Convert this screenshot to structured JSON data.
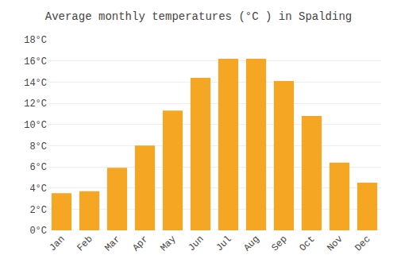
{
  "chart_data": {
    "type": "bar",
    "title": "Average monthly temperatures (°C ) in Spalding",
    "categories": [
      "Jan",
      "Feb",
      "Mar",
      "Apr",
      "May",
      "Jun",
      "Jul",
      "Aug",
      "Sep",
      "Oct",
      "Nov",
      "Dec"
    ],
    "values": [
      3.5,
      3.7,
      5.9,
      8.0,
      11.3,
      14.4,
      16.2,
      16.2,
      14.1,
      10.8,
      6.4,
      4.5
    ],
    "color": "#F5A623",
    "ylim": [
      0,
      18
    ],
    "yticks": [
      {
        "value": 0,
        "label": "0°C"
      },
      {
        "value": 2,
        "label": "2°C"
      },
      {
        "value": 4,
        "label": "4°C"
      },
      {
        "value": 6,
        "label": "6°C"
      },
      {
        "value": 8,
        "label": "8°C"
      },
      {
        "value": 10,
        "label": "10°C"
      },
      {
        "value": 12,
        "label": "12°C"
      },
      {
        "value": 14,
        "label": "14°C"
      },
      {
        "value": 16,
        "label": "16°C"
      },
      {
        "value": 18,
        "label": "18°C"
      }
    ],
    "grid": true
  }
}
